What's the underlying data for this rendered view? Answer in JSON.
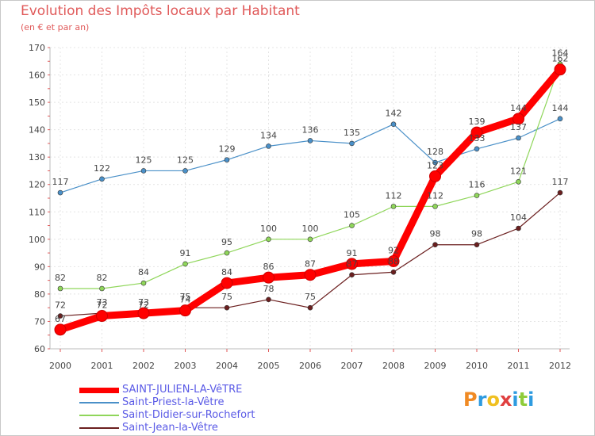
{
  "title": "Evolution des Impôts locaux par Habitant",
  "subtitle": "(en € et par an)",
  "logo_text": "Proxiti",
  "chart_data": {
    "type": "line",
    "title": "Evolution des Impôts locaux par Habitant",
    "subtitle": "(en € et par an)",
    "xlabel": "",
    "ylabel": "",
    "ylim": [
      60,
      170
    ],
    "grid": true,
    "legend_position": "bottom-left",
    "categories": [
      "2000",
      "2001",
      "2002",
      "2003",
      "2004",
      "2005",
      "2006",
      "2007",
      "2008",
      "2009",
      "2010",
      "2011",
      "2012"
    ],
    "y_ticks": [
      "60",
      "70",
      "80",
      "90",
      "100",
      "110",
      "120",
      "130",
      "140",
      "150",
      "160",
      "170"
    ],
    "series": [
      {
        "name": "SAINT-JULIEN-LA-VêTRE",
        "color": "#ff0000",
        "emphasis": true,
        "values": [
          67,
          72,
          73,
          74,
          84,
          86,
          87,
          91,
          92,
          123,
          139,
          144,
          162
        ],
        "labels": [
          "67",
          "72",
          "73",
          "74",
          "84",
          "86",
          "87",
          "91",
          "92",
          "123",
          "139",
          "144",
          "162"
        ]
      },
      {
        "name": "Saint-Priest-la-Vêtre",
        "color": "#4a90c8",
        "emphasis": false,
        "values": [
          117,
          122,
          125,
          125,
          129,
          134,
          136,
          135,
          142,
          128,
          133,
          137,
          144
        ],
        "labels": [
          "117",
          "122",
          "125",
          "125",
          "129",
          "134",
          "136",
          "135",
          "142",
          "128",
          "133",
          "137",
          "144"
        ]
      },
      {
        "name": "Saint-Didier-sur-Rochefort",
        "color": "#8fd65a",
        "emphasis": false,
        "values": [
          82,
          82,
          84,
          91,
          95,
          100,
          100,
          105,
          112,
          112,
          116,
          121,
          164
        ],
        "labels": [
          "82",
          "82",
          "84",
          "91",
          "95",
          "100",
          "100",
          "105",
          "112",
          "112",
          "116",
          "121",
          "164"
        ]
      },
      {
        "name": "Saint-Jean-la-Vêtre",
        "color": "#6b1f1f",
        "emphasis": false,
        "values": [
          72,
          73,
          72,
          75,
          75,
          78,
          75,
          87,
          88,
          98,
          98,
          104,
          117
        ],
        "labels": [
          "72",
          "73",
          "72",
          "75",
          "75",
          "78",
          "75",
          "87",
          "88",
          "98",
          "98",
          "104",
          "117"
        ]
      }
    ]
  }
}
